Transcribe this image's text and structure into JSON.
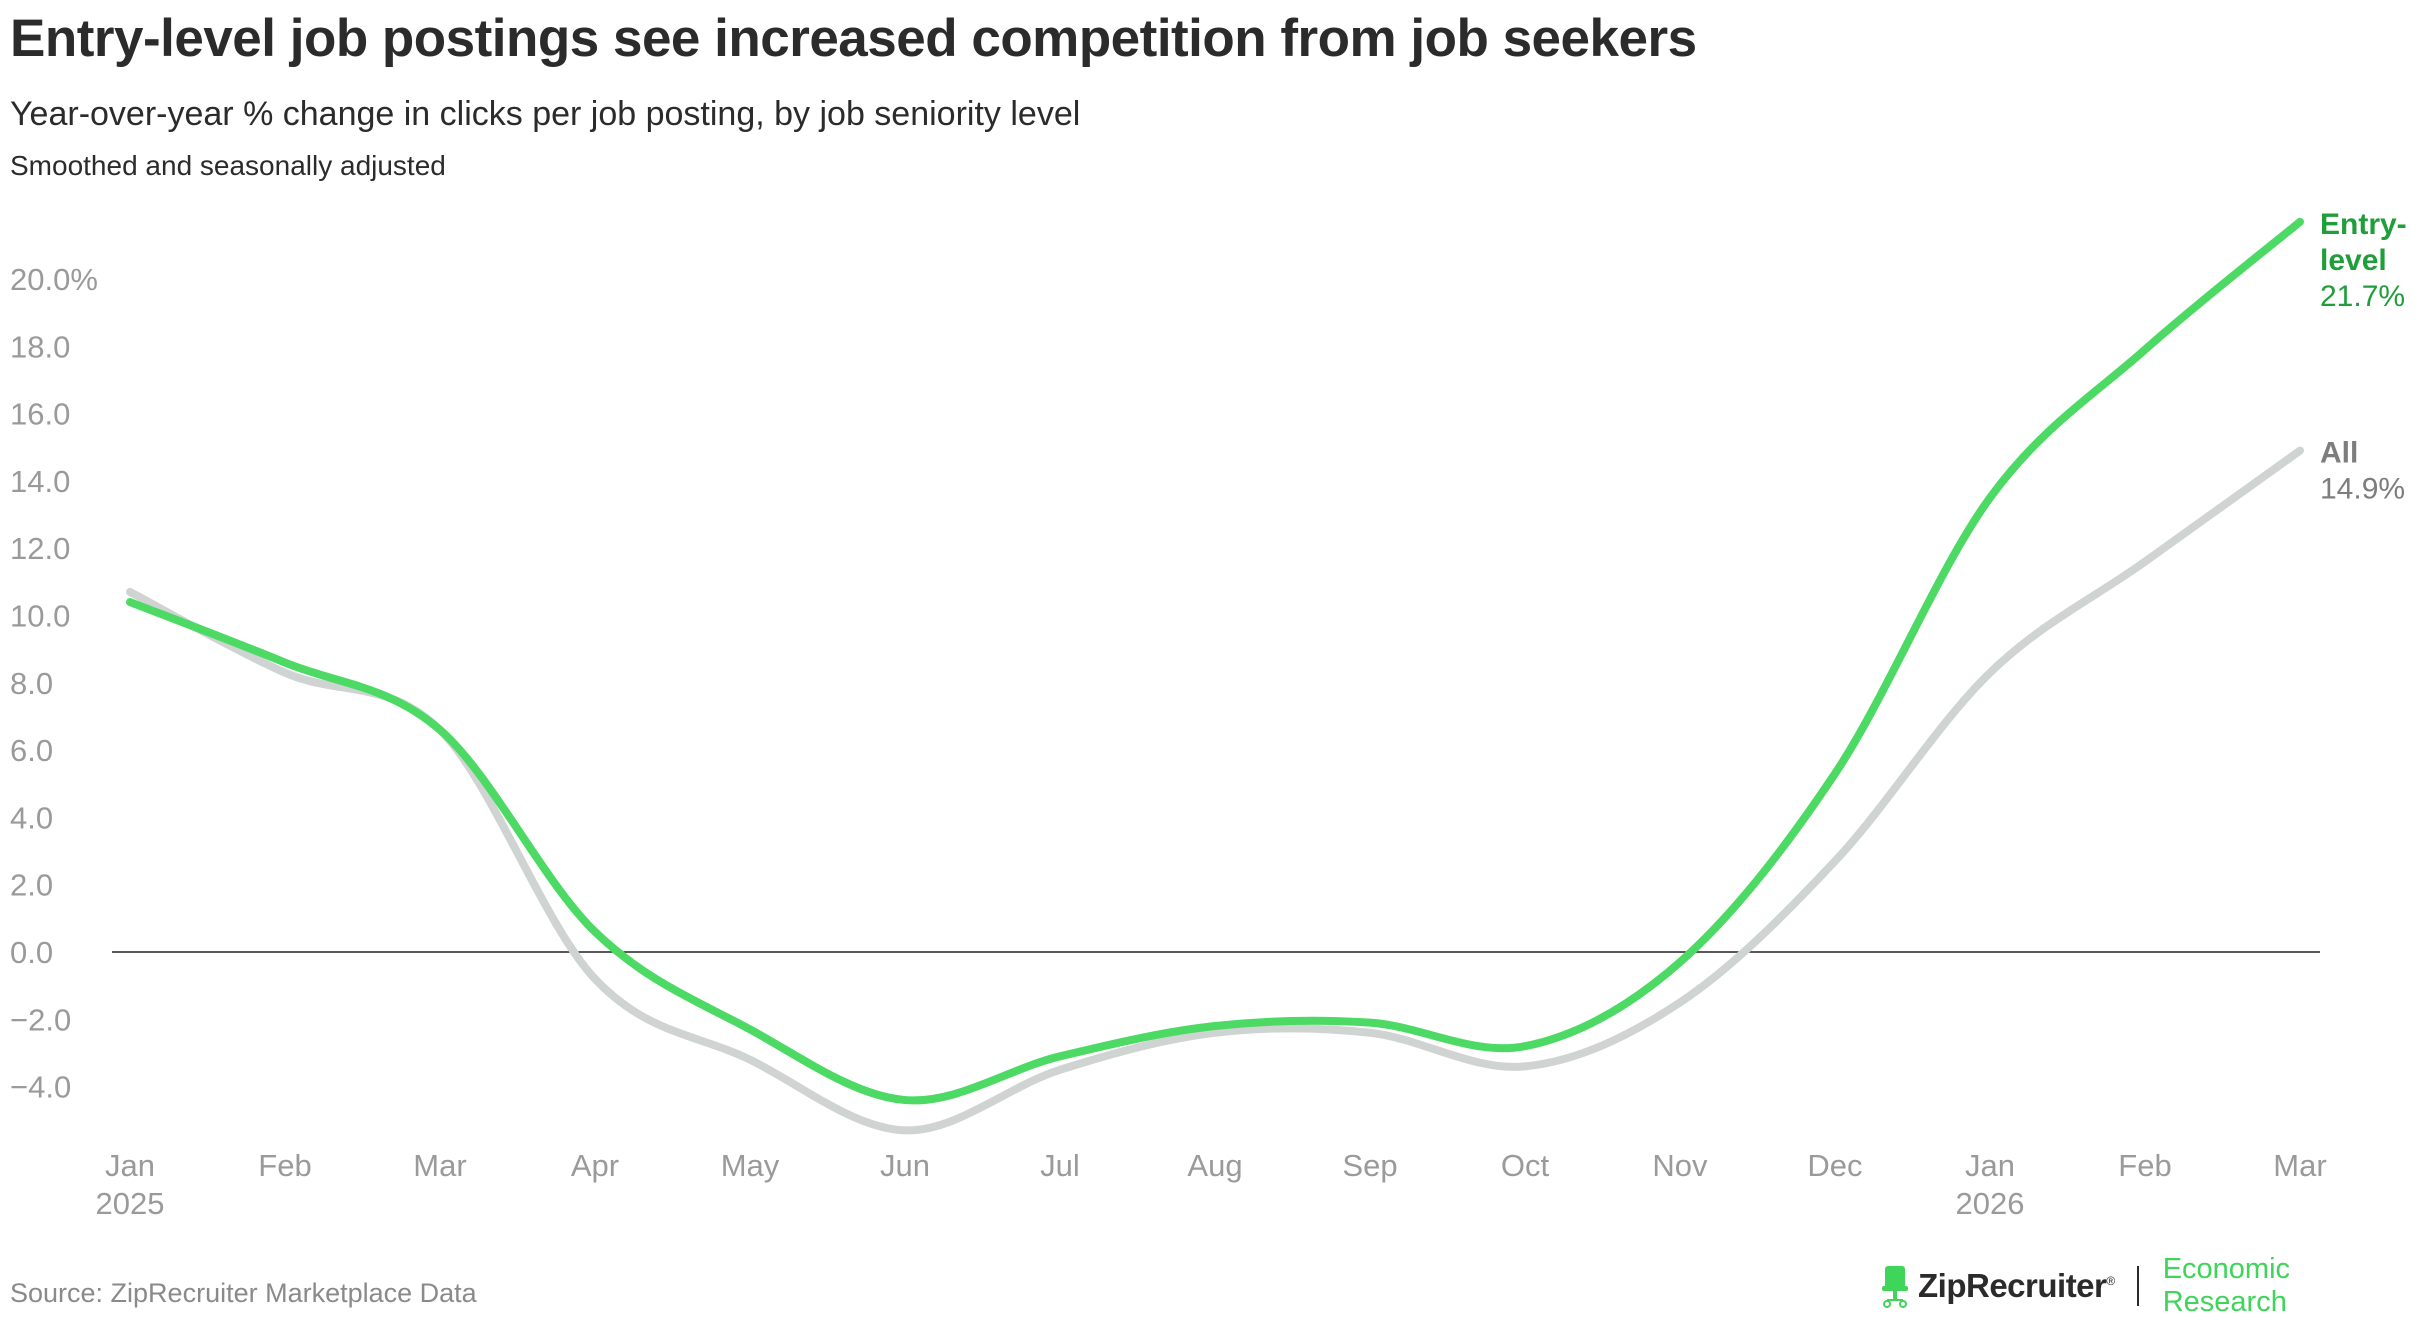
{
  "title": "Entry-level job postings see increased competition from job seekers",
  "subtitle": "Year-over-year % change in clicks per job posting, by job seniority level",
  "note": "Smoothed and seasonally adjusted",
  "source": "Source: ZipRecruiter Marketplace Data",
  "brand": {
    "name": "ZipRecruiter",
    "registered": "®",
    "section": "Economic Research",
    "logo_icon": "chair-icon"
  },
  "colors": {
    "entry": "#4cd964",
    "entry_label": "#1f9e3a",
    "all": "#cfd4d2",
    "all_label": "#7d7d7d",
    "axis_text": "#9a9a9a",
    "zero_line": "#222222"
  },
  "chart_data": {
    "type": "line",
    "ylim": [
      -5.5,
      22.5
    ],
    "yticks": [
      -4,
      -2,
      0,
      2,
      4,
      6,
      8,
      10,
      12,
      14,
      16,
      18,
      20
    ],
    "ytick_labels": [
      "−4.0",
      "−2.0",
      "0.0",
      "2.0",
      "4.0",
      "6.0",
      "8.0",
      "10.0",
      "12.0",
      "14.0",
      "16.0",
      "18.0",
      "20.0%"
    ],
    "xticks": [
      {
        "label": "Jan",
        "sub": "2025"
      },
      {
        "label": "Feb",
        "sub": ""
      },
      {
        "label": "Mar",
        "sub": ""
      },
      {
        "label": "Apr",
        "sub": ""
      },
      {
        "label": "May",
        "sub": ""
      },
      {
        "label": "Jun",
        "sub": ""
      },
      {
        "label": "Jul",
        "sub": ""
      },
      {
        "label": "Aug",
        "sub": ""
      },
      {
        "label": "Sep",
        "sub": ""
      },
      {
        "label": "Oct",
        "sub": ""
      },
      {
        "label": "Nov",
        "sub": ""
      },
      {
        "label": "Dec",
        "sub": ""
      },
      {
        "label": "Jan",
        "sub": "2026"
      },
      {
        "label": "Feb",
        "sub": ""
      },
      {
        "label": "Mar",
        "sub": ""
      }
    ],
    "x": [
      "2025-01",
      "2025-02",
      "2025-03",
      "2025-04",
      "2025-05",
      "2025-06",
      "2025-07",
      "2025-08",
      "2025-09",
      "2025-10",
      "2025-11",
      "2025-12",
      "2026-01",
      "2026-02",
      "2026-03"
    ],
    "series": [
      {
        "name": "All",
        "end_label": "14.9%",
        "values": [
          10.7,
          8.3,
          6.6,
          -0.8,
          -3.2,
          -5.3,
          -3.5,
          -2.4,
          -2.4,
          -3.4,
          -1.5,
          2.7,
          8.3,
          11.6,
          14.9
        ]
      },
      {
        "name": "Entry-level",
        "name_lines": [
          "Entry-",
          "level"
        ],
        "end_label": "21.7%",
        "values": [
          10.4,
          8.6,
          6.6,
          0.6,
          -2.3,
          -4.4,
          -3.1,
          -2.2,
          -2.1,
          -2.8,
          -0.3,
          5.3,
          13.5,
          17.9,
          21.7
        ]
      }
    ],
    "zero_line": true,
    "grid": false,
    "legend": "direct labels at line ends"
  }
}
